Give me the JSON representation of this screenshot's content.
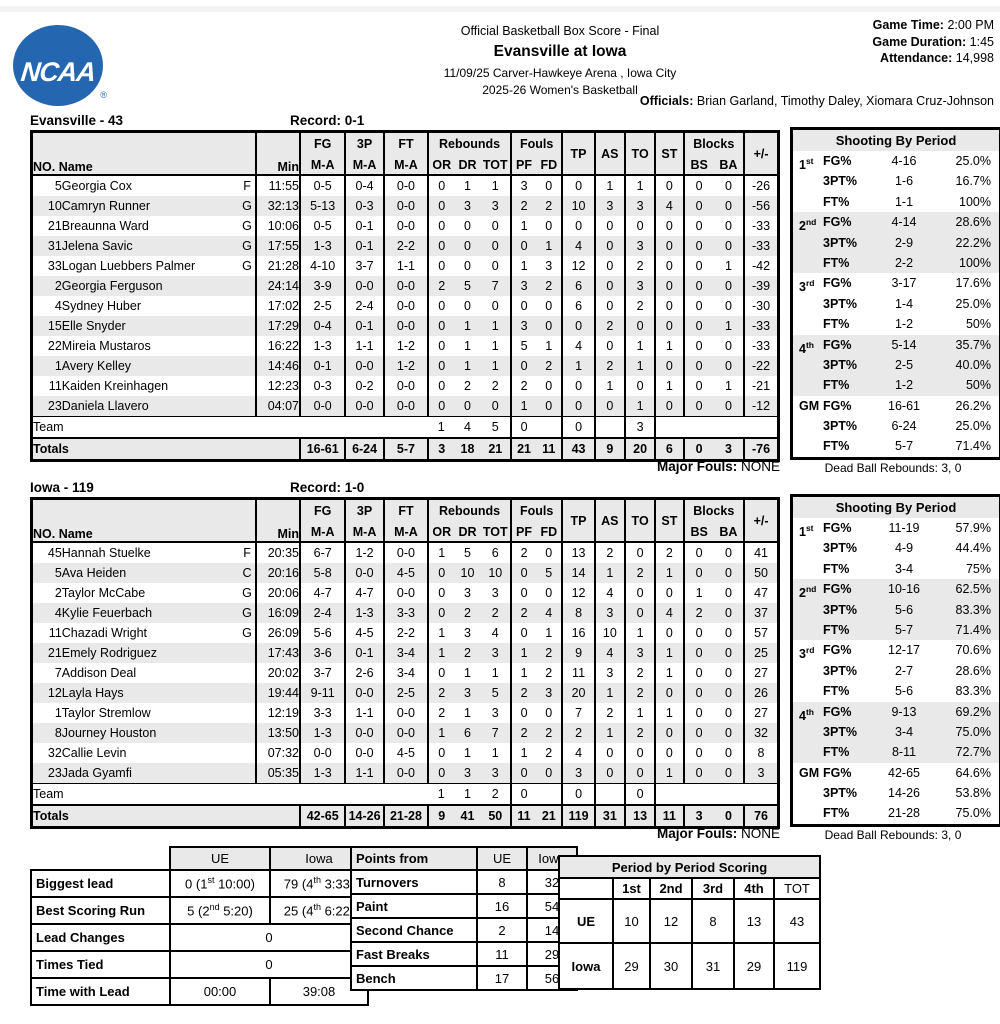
{
  "header": {
    "logo_text": "NCAA",
    "logo_reg": "®",
    "logo_color": "#2566b0",
    "doc_type": "Official Basketball Box Score - Final",
    "matchup": "Evansville at Iowa",
    "venue": "11/09/25 Carver-Hawkeye Arena , Iowa City",
    "league": "2025-26 Women's Basketball",
    "game_time_label": "Game Time:",
    "game_time": "2:00 PM",
    "game_duration_label": "Game Duration:",
    "game_duration": "1:45",
    "attendance_label": "Attendance:",
    "attendance": "14,998",
    "officials_label": "Officials:",
    "officials": "Brian Garland, Timothy Daley, Xiomara Cruz-Johnson"
  },
  "box_header": {
    "no_name": "NO. Name",
    "min": "Min",
    "fg": "FG",
    "p3": "3P",
    "ft": "FT",
    "ma": "M-A",
    "rebounds": "Rebounds",
    "or": "OR",
    "dr": "DR",
    "tot": "TOT",
    "fouls": "Fouls",
    "pf": "PF",
    "fd": "FD",
    "tp": "TP",
    "as": "AS",
    "to": "TO",
    "st": "ST",
    "blocks": "Blocks",
    "bs": "BS",
    "ba": "BA",
    "pm": "+/-",
    "team_label": "Team",
    "totals_label": "Totals"
  },
  "player_fields": [
    "no",
    "name",
    "pos",
    "min",
    "fg",
    "3p",
    "ft",
    "or",
    "dr",
    "tot",
    "pf",
    "fd",
    "tp",
    "as",
    "to",
    "st",
    "bs",
    "ba",
    "pm"
  ],
  "teams": [
    {
      "title": "Evansville - 43",
      "record": "Record: 0-1",
      "players": [
        [
          "5",
          "Georgia Cox",
          "F",
          "11:55",
          "0-5",
          "0-4",
          "0-0",
          "0",
          "1",
          "1",
          "3",
          "0",
          "0",
          "1",
          "1",
          "0",
          "0",
          "0",
          "-26"
        ],
        [
          "10",
          "Camryn Runner",
          "G",
          "32:13",
          "5-13",
          "0-3",
          "0-0",
          "0",
          "3",
          "3",
          "2",
          "2",
          "10",
          "3",
          "3",
          "4",
          "0",
          "0",
          "-56"
        ],
        [
          "21",
          "Breaunna Ward",
          "G",
          "10:06",
          "0-5",
          "0-1",
          "0-0",
          "0",
          "0",
          "0",
          "1",
          "0",
          "0",
          "0",
          "0",
          "0",
          "0",
          "0",
          "-33"
        ],
        [
          "31",
          "Jelena Savic",
          "G",
          "17:55",
          "1-3",
          "0-1",
          "2-2",
          "0",
          "0",
          "0",
          "0",
          "1",
          "4",
          "0",
          "3",
          "0",
          "0",
          "0",
          "-33"
        ],
        [
          "33",
          "Logan Luebbers Palmer",
          "G",
          "21:28",
          "4-10",
          "3-7",
          "1-1",
          "0",
          "0",
          "0",
          "1",
          "3",
          "12",
          "0",
          "2",
          "0",
          "0",
          "1",
          "-42"
        ],
        [
          "2",
          "Georgia Ferguson",
          "",
          "24:14",
          "3-9",
          "0-0",
          "0-0",
          "2",
          "5",
          "7",
          "3",
          "2",
          "6",
          "0",
          "3",
          "0",
          "0",
          "0",
          "-39"
        ],
        [
          "4",
          "Sydney Huber",
          "",
          "17:02",
          "2-5",
          "2-4",
          "0-0",
          "0",
          "0",
          "0",
          "0",
          "0",
          "6",
          "0",
          "2",
          "0",
          "0",
          "0",
          "-30"
        ],
        [
          "15",
          "Elle Snyder",
          "",
          "17:29",
          "0-4",
          "0-1",
          "0-0",
          "0",
          "1",
          "1",
          "3",
          "0",
          "0",
          "2",
          "0",
          "0",
          "0",
          "1",
          "-33"
        ],
        [
          "22",
          "Mireia Mustaros",
          "",
          "16:22",
          "1-3",
          "1-1",
          "1-2",
          "0",
          "1",
          "1",
          "5",
          "1",
          "4",
          "0",
          "1",
          "1",
          "0",
          "0",
          "-33"
        ],
        [
          "1",
          "Avery Kelley",
          "",
          "14:46",
          "0-1",
          "0-0",
          "1-2",
          "0",
          "1",
          "1",
          "0",
          "2",
          "1",
          "2",
          "1",
          "0",
          "0",
          "0",
          "-22"
        ],
        [
          "11",
          "Kaiden Kreinhagen",
          "",
          "12:23",
          "0-3",
          "0-2",
          "0-0",
          "0",
          "2",
          "2",
          "2",
          "0",
          "0",
          "1",
          "0",
          "1",
          "0",
          "1",
          "-21"
        ],
        [
          "23",
          "Daniela Llavero",
          "",
          "04:07",
          "0-0",
          "0-0",
          "0-0",
          "0",
          "0",
          "0",
          "1",
          "0",
          "0",
          "0",
          "1",
          "0",
          "0",
          "0",
          "-12"
        ]
      ],
      "team_row": {
        "or": "1",
        "dr": "4",
        "tot": "5",
        "pf": "0",
        "tp": "0",
        "to": "3"
      },
      "totals": [
        "16-61",
        "6-24",
        "5-7",
        "3",
        "18",
        "21",
        "21",
        "11",
        "43",
        "9",
        "20",
        "6",
        "0",
        "3",
        "-76"
      ],
      "major_fouls_label": "Major Fouls:",
      "major_fouls": "NONE",
      "shooting": {
        "title": "Shooting By Period",
        "dead_ball": "Dead Ball Rebounds: 3, 0",
        "groups": [
          {
            "period": "1",
            "sup": "st",
            "rows": [
              [
                "FG%",
                "4-16",
                "25.0%"
              ],
              [
                "3PT%",
                "1-6",
                "16.7%"
              ],
              [
                "FT%",
                "1-1",
                "100%"
              ]
            ]
          },
          {
            "period": "2",
            "sup": "nd",
            "rows": [
              [
                "FG%",
                "4-14",
                "28.6%"
              ],
              [
                "3PT%",
                "2-9",
                "22.2%"
              ],
              [
                "FT%",
                "2-2",
                "100%"
              ]
            ]
          },
          {
            "period": "3",
            "sup": "rd",
            "rows": [
              [
                "FG%",
                "3-17",
                "17.6%"
              ],
              [
                "3PT%",
                "1-4",
                "25.0%"
              ],
              [
                "FT%",
                "1-2",
                "50%"
              ]
            ]
          },
          {
            "period": "4",
            "sup": "th",
            "rows": [
              [
                "FG%",
                "5-14",
                "35.7%"
              ],
              [
                "3PT%",
                "2-5",
                "40.0%"
              ],
              [
                "FT%",
                "1-2",
                "50%"
              ]
            ]
          },
          {
            "period": "GM",
            "sup": "",
            "rows": [
              [
                "FG%",
                "16-61",
                "26.2%"
              ],
              [
                "3PT%",
                "6-24",
                "25.0%"
              ],
              [
                "FT%",
                "5-7",
                "71.4%"
              ]
            ]
          }
        ]
      }
    },
    {
      "title": "Iowa - 119",
      "record": "Record: 1-0",
      "players": [
        [
          "45",
          "Hannah Stuelke",
          "F",
          "20:35",
          "6-7",
          "1-2",
          "0-0",
          "1",
          "5",
          "6",
          "2",
          "0",
          "13",
          "2",
          "0",
          "2",
          "0",
          "0",
          "41"
        ],
        [
          "5",
          "Ava Heiden",
          "C",
          "20:16",
          "5-8",
          "0-0",
          "4-5",
          "0",
          "10",
          "10",
          "0",
          "5",
          "14",
          "1",
          "2",
          "1",
          "0",
          "0",
          "50"
        ],
        [
          "2",
          "Taylor McCabe",
          "G",
          "20:06",
          "4-7",
          "4-7",
          "0-0",
          "0",
          "3",
          "3",
          "0",
          "0",
          "12",
          "4",
          "0",
          "0",
          "1",
          "0",
          "47"
        ],
        [
          "4",
          "Kylie Feuerbach",
          "G",
          "16:09",
          "2-4",
          "1-3",
          "3-3",
          "0",
          "2",
          "2",
          "2",
          "4",
          "8",
          "3",
          "0",
          "4",
          "2",
          "0",
          "37"
        ],
        [
          "11",
          "Chazadi Wright",
          "G",
          "26:09",
          "5-6",
          "4-5",
          "2-2",
          "1",
          "3",
          "4",
          "0",
          "1",
          "16",
          "10",
          "1",
          "0",
          "0",
          "0",
          "57"
        ],
        [
          "21",
          "Emely Rodriguez",
          "",
          "17:43",
          "3-6",
          "0-1",
          "3-4",
          "1",
          "2",
          "3",
          "1",
          "2",
          "9",
          "4",
          "3",
          "1",
          "0",
          "0",
          "25"
        ],
        [
          "7",
          "Addison Deal",
          "",
          "20:02",
          "3-7",
          "2-6",
          "3-4",
          "0",
          "1",
          "1",
          "1",
          "2",
          "11",
          "3",
          "2",
          "1",
          "0",
          "0",
          "27"
        ],
        [
          "12",
          "Layla Hays",
          "",
          "19:44",
          "9-11",
          "0-0",
          "2-5",
          "2",
          "3",
          "5",
          "2",
          "3",
          "20",
          "1",
          "2",
          "0",
          "0",
          "0",
          "26"
        ],
        [
          "1",
          "Taylor Stremlow",
          "",
          "12:19",
          "3-3",
          "1-1",
          "0-0",
          "2",
          "1",
          "3",
          "0",
          "0",
          "7",
          "2",
          "1",
          "1",
          "0",
          "0",
          "27"
        ],
        [
          "8",
          "Journey Houston",
          "",
          "13:50",
          "1-3",
          "0-0",
          "0-0",
          "1",
          "6",
          "7",
          "2",
          "2",
          "2",
          "1",
          "2",
          "0",
          "0",
          "0",
          "32"
        ],
        [
          "32",
          "Callie Levin",
          "",
          "07:32",
          "0-0",
          "0-0",
          "4-5",
          "0",
          "1",
          "1",
          "1",
          "2",
          "4",
          "0",
          "0",
          "0",
          "0",
          "0",
          "8"
        ],
        [
          "23",
          "Jada Gyamfi",
          "",
          "05:35",
          "1-3",
          "1-1",
          "0-0",
          "0",
          "3",
          "3",
          "0",
          "0",
          "3",
          "0",
          "0",
          "1",
          "0",
          "0",
          "3"
        ]
      ],
      "team_row": {
        "or": "1",
        "dr": "1",
        "tot": "2",
        "pf": "0",
        "tp": "0",
        "to": "0"
      },
      "totals": [
        "42-65",
        "14-26",
        "21-28",
        "9",
        "41",
        "50",
        "11",
        "21",
        "119",
        "31",
        "13",
        "11",
        "3",
        "0",
        "76"
      ],
      "major_fouls_label": "Major Fouls:",
      "major_fouls": "NONE",
      "shooting": {
        "title": "Shooting By Period",
        "dead_ball": "Dead Ball Rebounds: 3, 0",
        "groups": [
          {
            "period": "1",
            "sup": "st",
            "rows": [
              [
                "FG%",
                "11-19",
                "57.9%"
              ],
              [
                "3PT%",
                "4-9",
                "44.4%"
              ],
              [
                "FT%",
                "3-4",
                "75%"
              ]
            ]
          },
          {
            "period": "2",
            "sup": "nd",
            "rows": [
              [
                "FG%",
                "10-16",
                "62.5%"
              ],
              [
                "3PT%",
                "5-6",
                "83.3%"
              ],
              [
                "FT%",
                "5-7",
                "71.4%"
              ]
            ]
          },
          {
            "period": "3",
            "sup": "rd",
            "rows": [
              [
                "FG%",
                "12-17",
                "70.6%"
              ],
              [
                "3PT%",
                "2-7",
                "28.6%"
              ],
              [
                "FT%",
                "5-6",
                "83.3%"
              ]
            ]
          },
          {
            "period": "4",
            "sup": "th",
            "rows": [
              [
                "FG%",
                "9-13",
                "69.2%"
              ],
              [
                "3PT%",
                "3-4",
                "75.0%"
              ],
              [
                "FT%",
                "8-11",
                "72.7%"
              ]
            ]
          },
          {
            "period": "GM",
            "sup": "",
            "rows": [
              [
                "FG%",
                "42-65",
                "64.6%"
              ],
              [
                "3PT%",
                "14-26",
                "53.8%"
              ],
              [
                "FT%",
                "21-28",
                "75.0%"
              ]
            ]
          }
        ]
      }
    }
  ],
  "bottom": {
    "lead_table": {
      "headers": [
        "UE",
        "Iowa"
      ],
      "rows": [
        {
          "label": "Biggest lead",
          "cells": [
            {
              "pre": "0 (1",
              "sup": "st",
              "post": " 10:00)"
            },
            {
              "pre": "79 (4",
              "sup": "th",
              "post": " 3:33)"
            }
          ]
        },
        {
          "label": "Best Scoring Run",
          "cells": [
            {
              "pre": "5 (2",
              "sup": "nd",
              "post": " 5:20)"
            },
            {
              "pre": "25 (4",
              "sup": "th",
              "post": " 6:22)"
            }
          ]
        },
        {
          "label": "Lead Changes",
          "span": "0"
        },
        {
          "label": "Times Tied",
          "span": "0"
        },
        {
          "label": "Time with Lead",
          "cells": [
            {
              "pre": "00:00",
              "sup": "",
              "post": ""
            },
            {
              "pre": "39:08",
              "sup": "",
              "post": ""
            }
          ]
        }
      ]
    },
    "points_table": {
      "title": "Points from",
      "headers": [
        "UE",
        "Iowa"
      ],
      "rows": [
        {
          "label": "Turnovers",
          "values": [
            "8",
            "32"
          ]
        },
        {
          "label": "Paint",
          "values": [
            "16",
            "54"
          ]
        },
        {
          "label": "Second Chance",
          "values": [
            "2",
            "14"
          ]
        },
        {
          "label": "Fast Breaks",
          "values": [
            "11",
            "29"
          ]
        },
        {
          "label": "Bench",
          "values": [
            "17",
            "56"
          ]
        }
      ]
    },
    "period_table": {
      "title": "Period by Period Scoring",
      "headers": [
        "1st",
        "2nd",
        "3rd",
        "4th",
        "TOT"
      ],
      "rows": [
        {
          "label": "UE",
          "values": [
            "10",
            "12",
            "8",
            "13",
            "43"
          ]
        },
        {
          "label": "Iowa",
          "values": [
            "29",
            "30",
            "31",
            "29",
            "119"
          ]
        }
      ]
    }
  }
}
